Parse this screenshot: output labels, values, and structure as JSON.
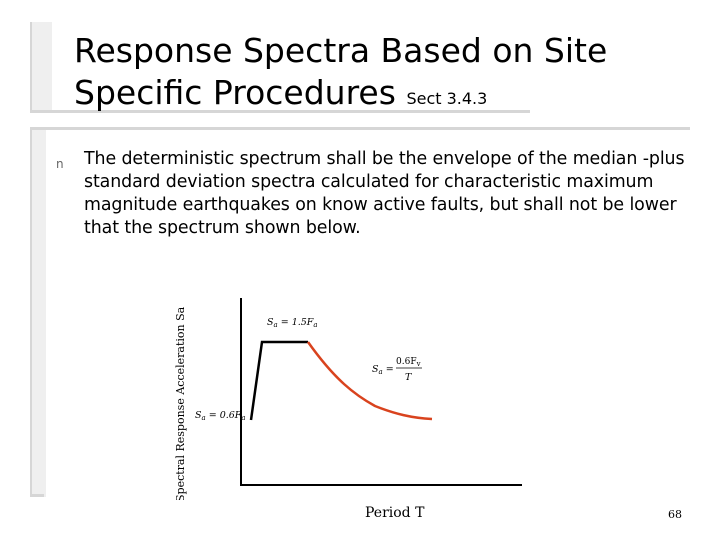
{
  "slide": {
    "title_line1": "Response Spectra Based on Site",
    "title_line2": "Specific Procedures",
    "title_section": "Sect 3.4.3",
    "bullet_text": "The deterministic spectrum shall be the envelope of the median -plus standard deviation spectra calculated for characteristic maximum magnitude earthquakes on know active faults, but shall not be lower that the spectrum shown below.",
    "page_number": "68"
  },
  "chart_data": {
    "type": "line",
    "ylabel": "Spectral Response Acceleration Sa",
    "xlabel": "Period T",
    "annotations": {
      "plateau": "Sa = 1.5Fa",
      "descending": "Sa = 0.6Fv / T",
      "start": "Sa = 0.6Fa"
    },
    "colors": {
      "axes": "#000000",
      "plateau": "#000000",
      "descending": "#d9431e"
    }
  }
}
